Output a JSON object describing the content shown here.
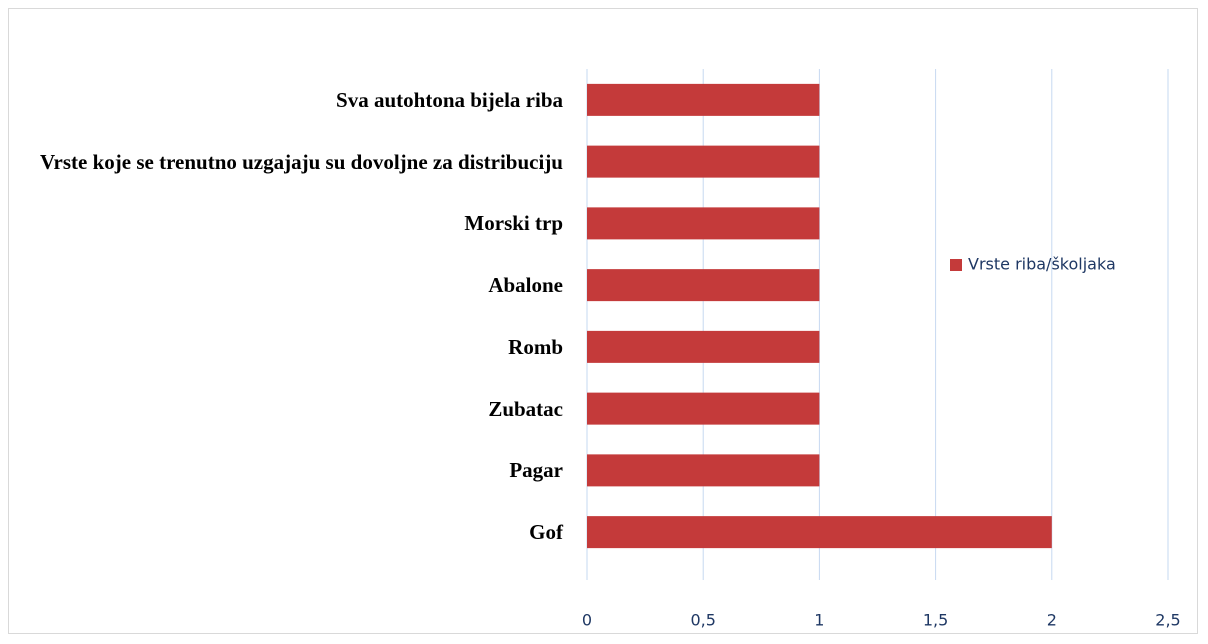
{
  "chart_data": {
    "type": "bar",
    "orientation": "horizontal",
    "categories": [
      "Sva autohtona bijela riba",
      "Vrste koje se trenutno uzgajaju su dovoljne za distribuciju",
      "Morski trp",
      "Abalone",
      "Romb",
      "Zubatac",
      "Pagar",
      "Gof"
    ],
    "series": [
      {
        "name": "Vrste riba/školjaka",
        "color": "#c43a3a",
        "values": [
          1,
          1,
          1,
          1,
          1,
          1,
          1,
          2
        ]
      }
    ],
    "xlim": [
      0,
      2.5
    ],
    "xticks": [
      0,
      {
        "value": 0.5,
        "label": "0,5"
      },
      1,
      {
        "value": 1.5,
        "label": "1,5"
      },
      2,
      {
        "value": 2.5,
        "label": "2,5"
      }
    ],
    "grid": true,
    "legend": "right"
  }
}
